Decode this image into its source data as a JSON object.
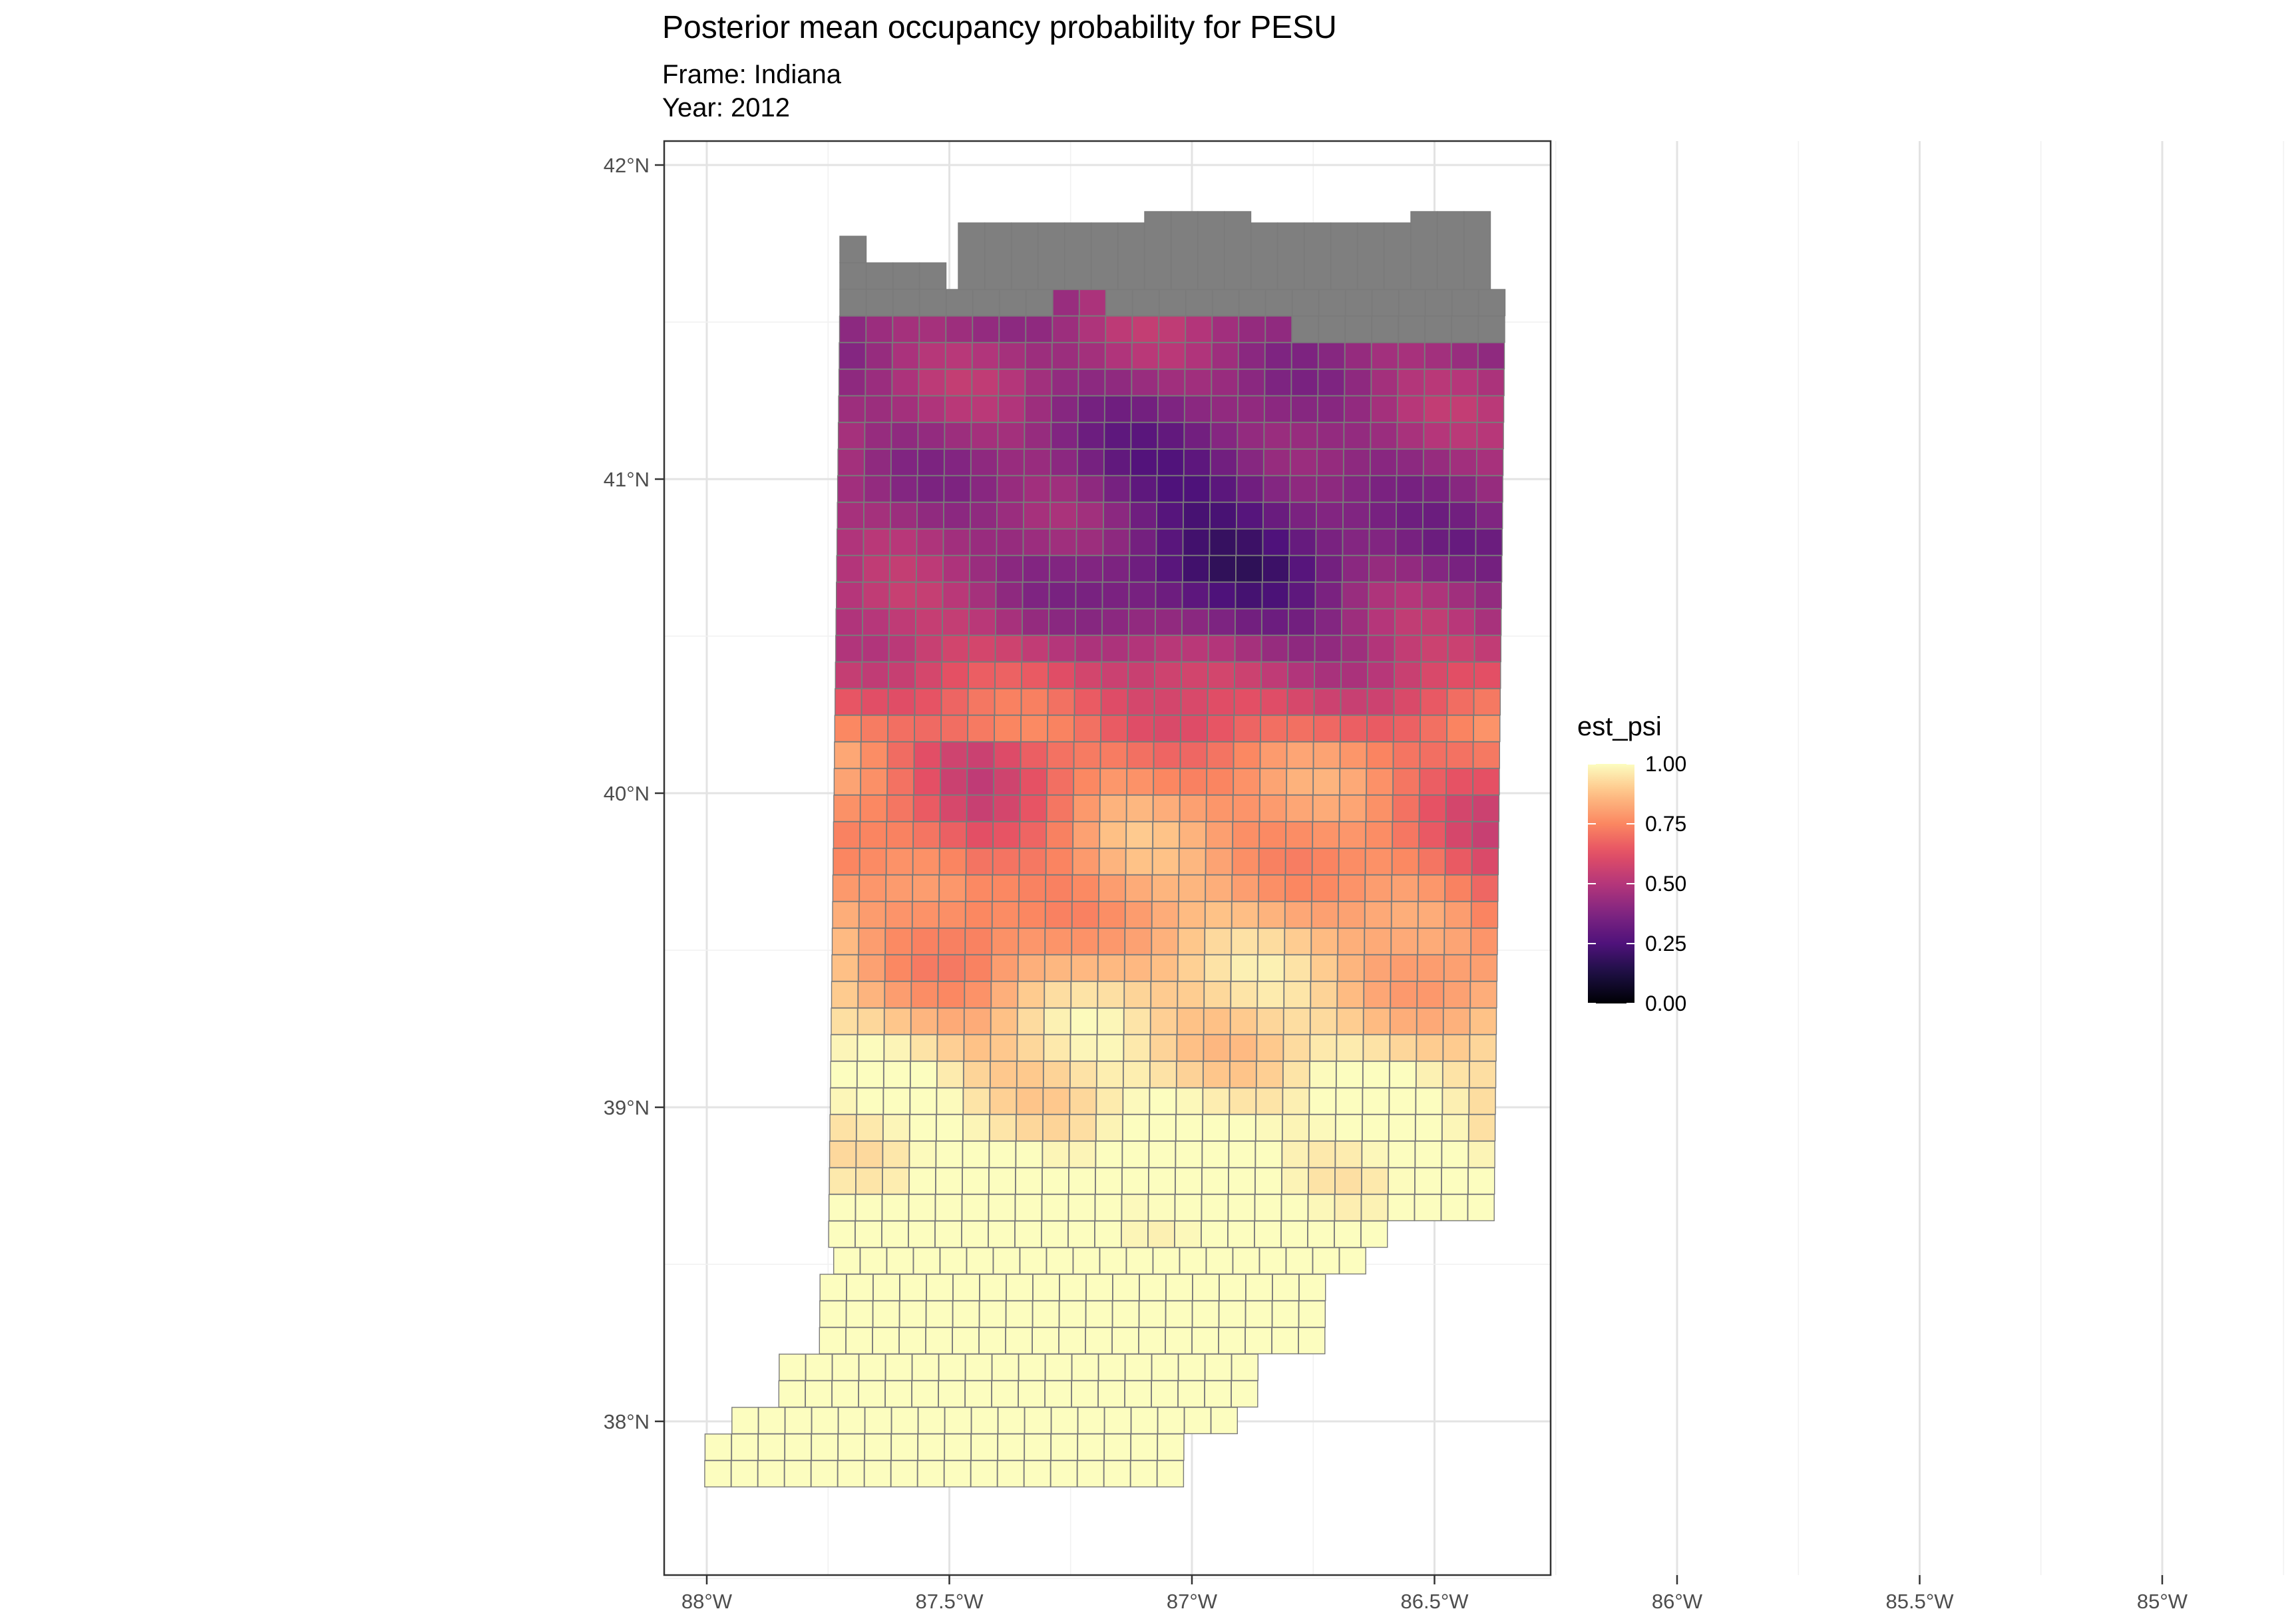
{
  "header": {
    "title": "Posterior mean occupancy probability for PESU",
    "subtitle_frame": "Frame: Indiana",
    "subtitle_year": "Year: 2012"
  },
  "chart_data": {
    "type": "heatmap",
    "title": "Posterior mean occupancy probability for PESU",
    "x_ticks": [
      "88°W",
      "87.5°W",
      "87°W",
      "86.5°W",
      "86°W",
      "85.5°W",
      "85°W"
    ],
    "y_ticks": [
      "42°N",
      "41°N",
      "40°N",
      "39°N",
      "38°N"
    ],
    "x_range_lon": [
      -88.1,
      -84.3
    ],
    "y_range_lat": [
      37.5,
      42.1
    ],
    "grid": true,
    "legend": {
      "title": "est_psi",
      "labels": [
        "1.00",
        "0.75",
        "0.50",
        "0.25",
        "0.00"
      ],
      "range": [
        0,
        1
      ],
      "position": "right",
      "colormap": "magma"
    },
    "missing_color": "#7f7f7f",
    "cell_border_color": "#7a7a7a"
  }
}
